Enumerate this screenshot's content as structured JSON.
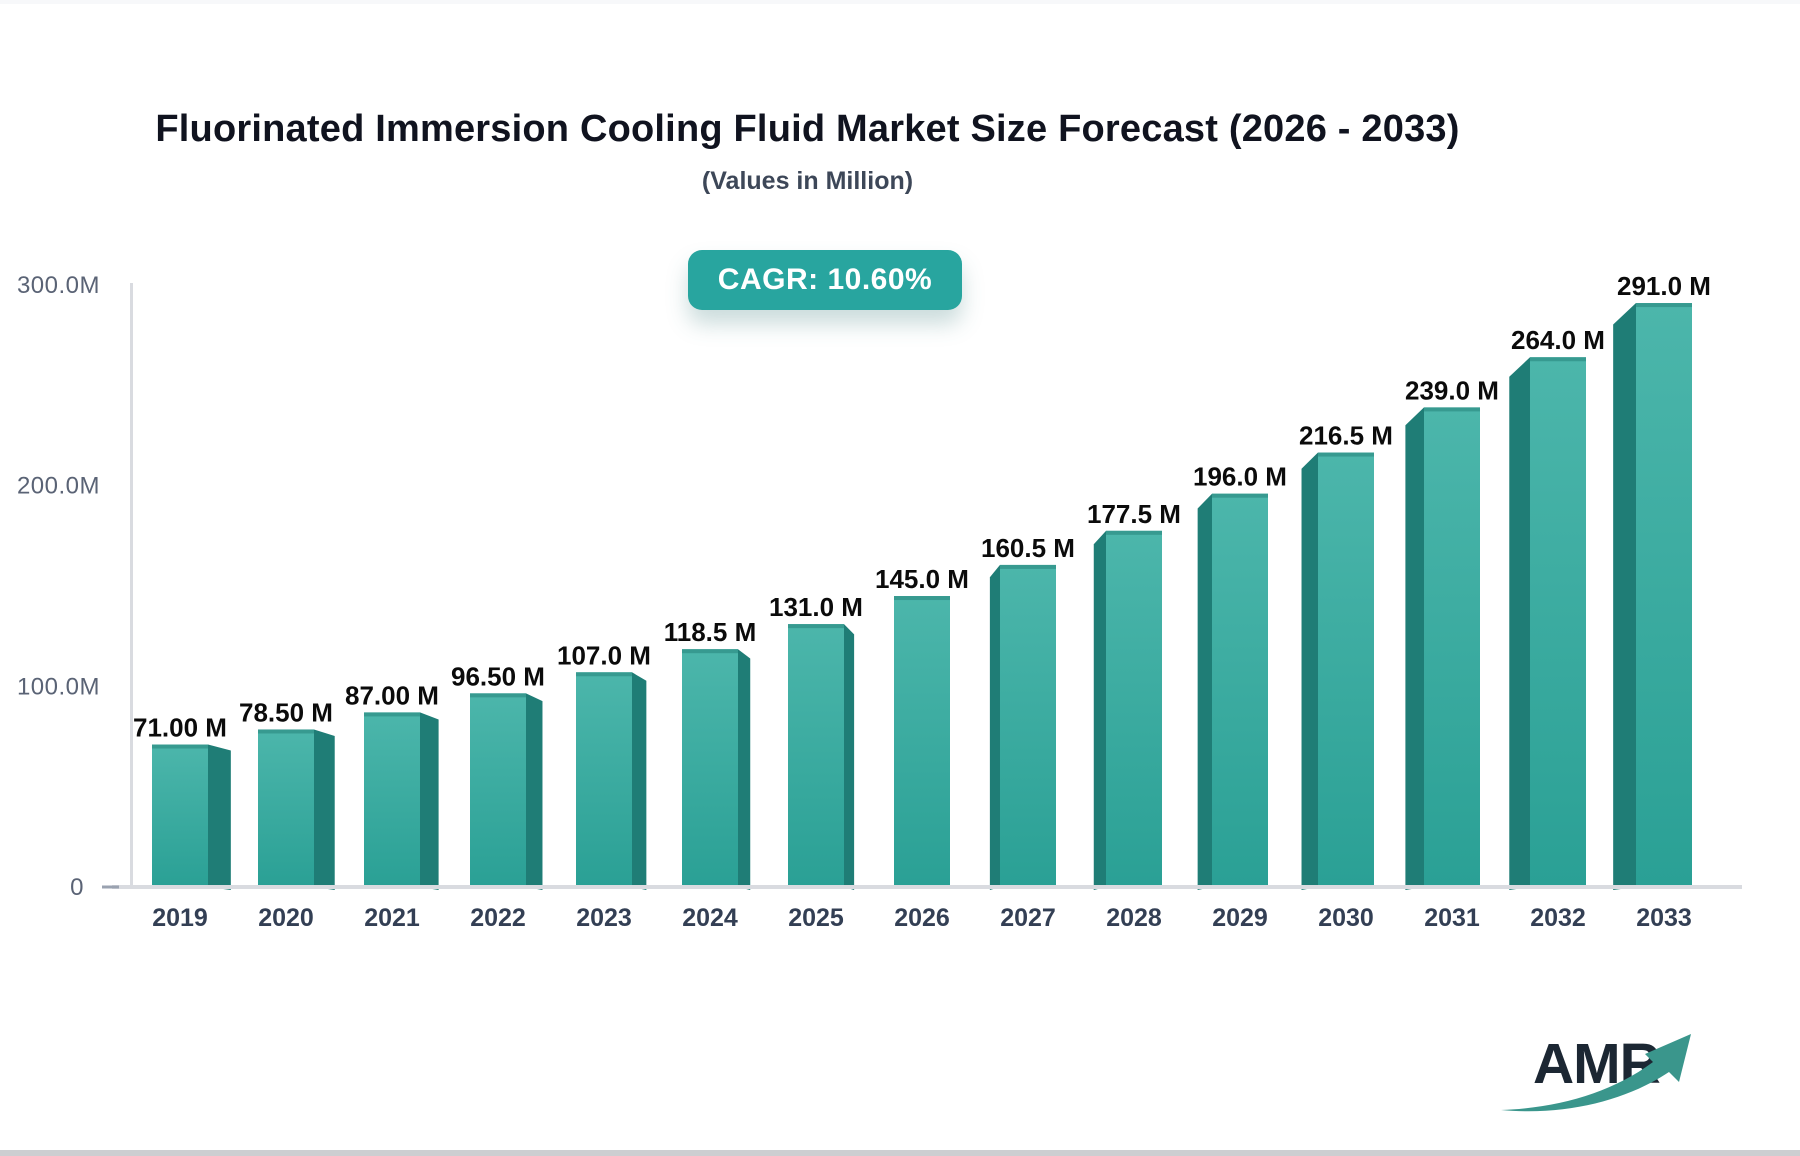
{
  "header": {
    "title": "Fluorinated Immersion Cooling Fluid Market Size Forecast (2026 - 2033)",
    "subtitle": "(Values in Million)",
    "cagr_badge": "CAGR: 10.60%"
  },
  "logo": {
    "text": "AMR"
  },
  "colors": {
    "badge_bg": "#28a59f",
    "title": "#10131f",
    "subtitle": "#3d4758",
    "bar_top": "#4cb6ab",
    "bar_bottom": "#2aa095",
    "bar_side": "#1f7d76",
    "bar_cap": "#379a90",
    "axis": "#d9dbe0",
    "tick_dash": "#9aa2b0",
    "y_label": "#5a6375",
    "x_label": "#333f54",
    "value_label": "#0b0b0b",
    "logo_text": "#1c2733",
    "logo_arrow": "#3a968c"
  },
  "chart_data": {
    "type": "bar",
    "title": "Fluorinated Immersion Cooling Fluid Market Size Forecast (2026 - 2033)",
    "subtitle": "(Values in Million)",
    "categories": [
      "2019",
      "2020",
      "2021",
      "2022",
      "2023",
      "2024",
      "2025",
      "2026",
      "2027",
      "2028",
      "2029",
      "2030",
      "2031",
      "2032",
      "2033"
    ],
    "values": [
      71.0,
      78.5,
      87.0,
      96.5,
      107.0,
      118.5,
      131.0,
      145.0,
      160.5,
      177.5,
      196.0,
      216.5,
      239.0,
      264.0,
      291.0
    ],
    "value_labels": [
      "71.00 M",
      "78.50 M",
      "87.00 M",
      "96.50 M",
      "107.0 M",
      "118.5 M",
      "131.0 M",
      "145.0 M",
      "160.5 M",
      "177.5 M",
      "196.0 M",
      "216.5 M",
      "239.0 M",
      "264.0 M",
      "291.0 M"
    ],
    "y_ticks": [
      {
        "label": "300.0M",
        "value": 300
      },
      {
        "label": "200.0M",
        "value": 200
      },
      {
        "label": "100.0M",
        "value": 100
      },
      {
        "label": "0",
        "value": 0
      }
    ],
    "ylim": [
      0,
      300
    ],
    "annotations": [
      "CAGR: 10.60%"
    ],
    "grid": false,
    "legend": false
  }
}
